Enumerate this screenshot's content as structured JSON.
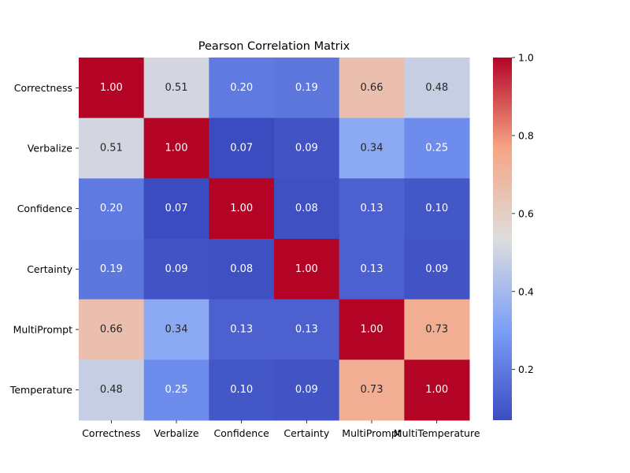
{
  "chart_data": {
    "type": "heatmap",
    "title": "Pearson Correlation Matrix",
    "rows": [
      "Correctness",
      "Verbalize",
      "Confidence",
      "Certainty",
      "MultiPrompt",
      "MultiTemperature"
    ],
    "row_tick_labels": [
      "Correctness",
      "Verbalize",
      "Confidence",
      "Certainty",
      "MultiPrompt",
      "Temperature"
    ],
    "columns": [
      "Correctness",
      "Verbalize",
      "Confidence",
      "Certainty",
      "MultiPrompt",
      "MultiTemperature"
    ],
    "values": [
      [
        1.0,
        0.51,
        0.2,
        0.19,
        0.66,
        0.48
      ],
      [
        0.51,
        1.0,
        0.07,
        0.09,
        0.34,
        0.25
      ],
      [
        0.2,
        0.07,
        1.0,
        0.08,
        0.13,
        0.1
      ],
      [
        0.19,
        0.09,
        0.08,
        1.0,
        0.13,
        0.09
      ],
      [
        0.66,
        0.34,
        0.13,
        0.13,
        1.0,
        0.73
      ],
      [
        0.48,
        0.25,
        0.1,
        0.09,
        0.73,
        1.0
      ]
    ],
    "cell_labels": [
      [
        "1.00",
        "0.51",
        "0.20",
        "0.19",
        "0.66",
        "0.48"
      ],
      [
        "0.51",
        "1.00",
        "0.07",
        "0.09",
        "0.34",
        "0.25"
      ],
      [
        "0.20",
        "0.07",
        "1.00",
        "0.08",
        "0.13",
        "0.10"
      ],
      [
        "0.19",
        "0.09",
        "0.08",
        "1.00",
        "0.13",
        "0.09"
      ],
      [
        "0.66",
        "0.34",
        "0.13",
        "0.13",
        "1.00",
        "0.73"
      ],
      [
        "0.48",
        "0.25",
        "0.10",
        "0.09",
        "0.73",
        "1.00"
      ]
    ],
    "colormap": "coolwarm",
    "vmin": 0.07,
    "vmax": 1.0,
    "colorbar": {
      "ticks": [
        0.2,
        0.4,
        0.6,
        0.8,
        1.0
      ],
      "tick_labels": [
        "0.2",
        "0.4",
        "0.6",
        "0.8",
        "1.0"
      ]
    },
    "grid": false,
    "legend_position": "right"
  }
}
